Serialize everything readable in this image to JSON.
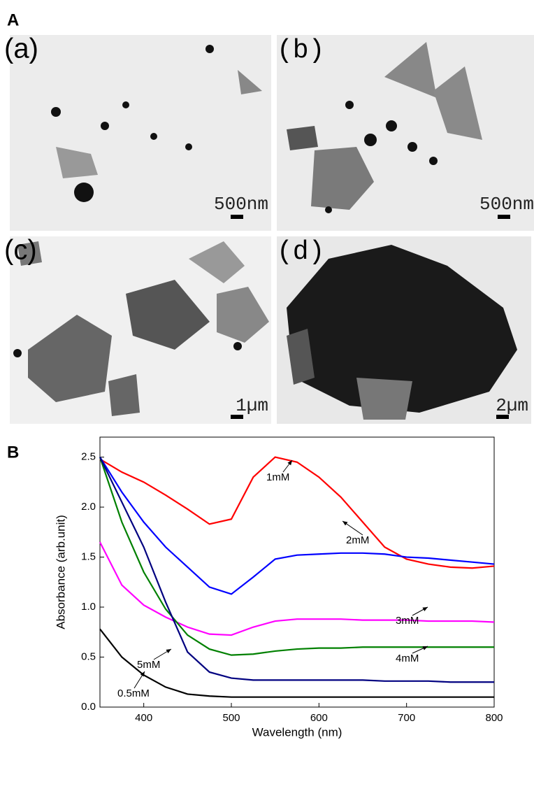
{
  "figure": {
    "panel_a_label": "A",
    "panel_b_label": "B",
    "images": [
      {
        "label": "(a)",
        "scale": "500nm"
      },
      {
        "label": "(b)",
        "scale": "500nm"
      },
      {
        "label": "(c)",
        "scale": "1µm"
      },
      {
        "label": "(d)",
        "scale": "2µm"
      }
    ]
  },
  "chart_data": {
    "type": "line",
    "x_label": "Wavelength (nm)",
    "y_label": "Absorbance (arb.unit)",
    "x": [
      350,
      375,
      400,
      425,
      450,
      475,
      500,
      525,
      550,
      575,
      600,
      625,
      650,
      675,
      700,
      725,
      750,
      775,
      800
    ],
    "series": [
      {
        "name": "1mM",
        "color": "#ff0000",
        "values": [
          2.48,
          2.35,
          2.25,
          2.12,
          1.98,
          1.83,
          1.88,
          2.3,
          2.5,
          2.45,
          2.3,
          2.1,
          1.85,
          1.6,
          1.48,
          1.43,
          1.4,
          1.39,
          1.41
        ]
      },
      {
        "name": "2mM",
        "color": "#0000ff",
        "values": [
          2.5,
          2.15,
          1.85,
          1.6,
          1.4,
          1.2,
          1.13,
          1.3,
          1.48,
          1.52,
          1.53,
          1.54,
          1.54,
          1.53,
          1.5,
          1.49,
          1.47,
          1.45,
          1.43
        ]
      },
      {
        "name": "3mM",
        "color": "#ff00ff",
        "values": [
          1.65,
          1.22,
          1.02,
          0.9,
          0.8,
          0.73,
          0.72,
          0.8,
          0.86,
          0.88,
          0.88,
          0.88,
          0.87,
          0.87,
          0.87,
          0.86,
          0.86,
          0.86,
          0.85
        ]
      },
      {
        "name": "4mM",
        "color": "#008000",
        "values": [
          2.5,
          1.85,
          1.35,
          0.98,
          0.72,
          0.58,
          0.52,
          0.53,
          0.56,
          0.58,
          0.59,
          0.59,
          0.6,
          0.6,
          0.6,
          0.6,
          0.6,
          0.6,
          0.6
        ]
      },
      {
        "name": "5mM",
        "color": "#000080",
        "values": [
          2.5,
          2.05,
          1.6,
          1.05,
          0.55,
          0.35,
          0.29,
          0.27,
          0.27,
          0.27,
          0.27,
          0.27,
          0.27,
          0.26,
          0.26,
          0.26,
          0.25,
          0.25,
          0.25
        ]
      },
      {
        "name": "0.5mM",
        "color": "#000000",
        "values": [
          0.78,
          0.5,
          0.32,
          0.2,
          0.13,
          0.11,
          0.1,
          0.1,
          0.1,
          0.1,
          0.1,
          0.1,
          0.1,
          0.1,
          0.1,
          0.1,
          0.1,
          0.1,
          0.1
        ]
      }
    ],
    "xlim": [
      350,
      800
    ],
    "xticks": [
      400,
      500,
      600,
      700,
      800
    ],
    "ylim": [
      0,
      2.7
    ],
    "yticks": [
      {
        "value": 0,
        "label": "0.0"
      },
      {
        "value": 0.5,
        "label": "0.5"
      },
      {
        "value": 1,
        "label": "1.0"
      },
      {
        "value": 1.5,
        "label": "1.5"
      },
      {
        "value": 2,
        "label": "2.0"
      },
      {
        "value": 2.5,
        "label": "2.5"
      }
    ]
  }
}
